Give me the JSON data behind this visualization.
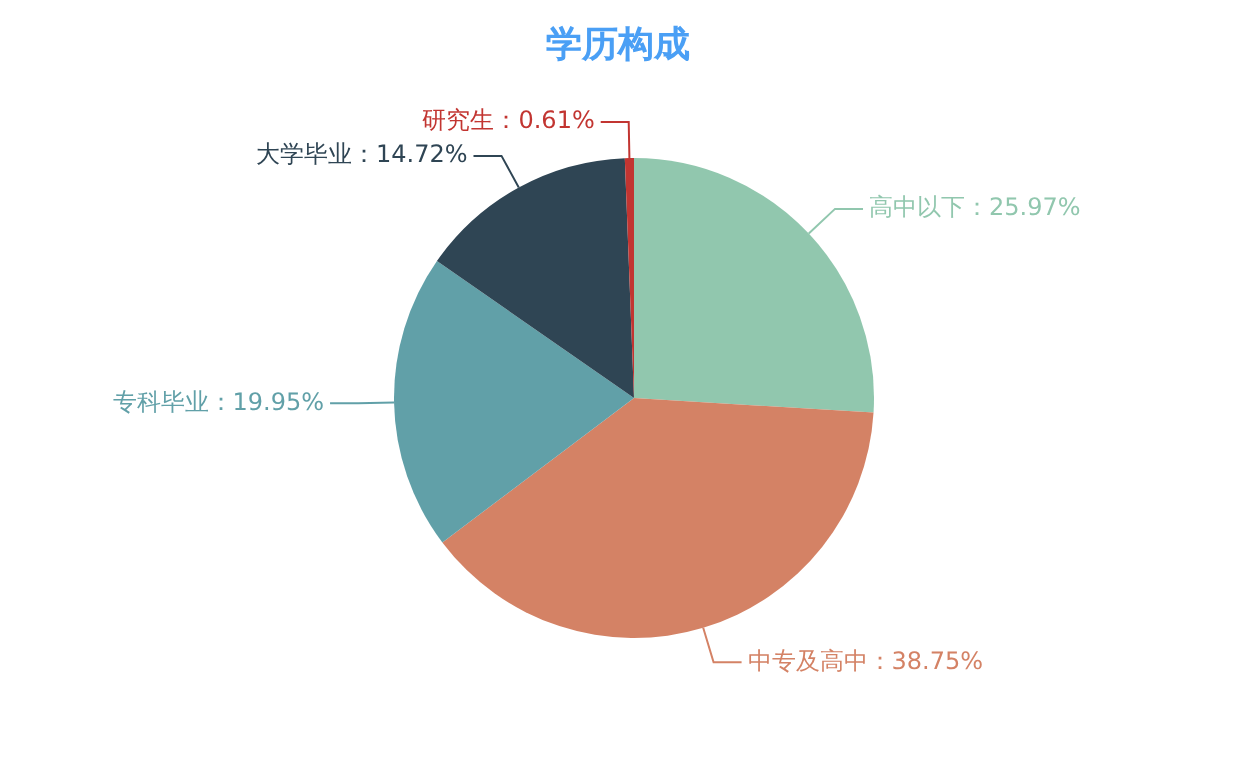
{
  "chart_data": {
    "type": "pie",
    "title": "学历构成",
    "categories": [
      "高中以下",
      "中专及高中",
      "专科毕业",
      "大学毕业",
      "研究生"
    ],
    "values": [
      25.97,
      38.75,
      19.95,
      14.72,
      0.61
    ],
    "colors": [
      "#91c7ae",
      "#d48265",
      "#61a0a8",
      "#2f4554",
      "#c23531"
    ],
    "value_labels": [
      "25.97%",
      "38.75%",
      "19.95%",
      "14.72%",
      "0.61%"
    ],
    "legend": false
  }
}
